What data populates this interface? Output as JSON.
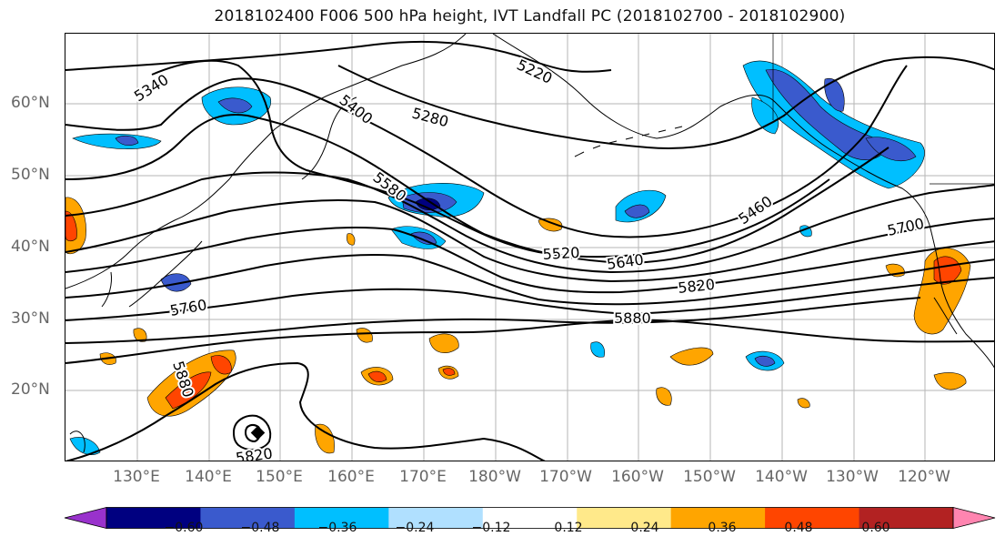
{
  "title": "2018102400 F006 500 hPa height, IVT Landfall PC (2018102700 - 2018102900)",
  "lat_labels": [
    "60°N",
    "50°N",
    "40°N",
    "30°N",
    "20°N"
  ],
  "lon_labels": [
    "130°E",
    "140°E",
    "150°E",
    "160°E",
    "170°E",
    "180°W",
    "170°W",
    "160°W",
    "150°W",
    "140°W",
    "130°W",
    "120°W"
  ],
  "contour_labels": {
    "c5340": "5340",
    "c5220": "5220",
    "c5400": "5400",
    "c5280": "5280",
    "c5580": "5580",
    "c5460": "5460",
    "c5700": "5700",
    "c5520": "5520",
    "c5640": "5640",
    "c5820a": "5820",
    "c5760": "5760",
    "c5880a": "5880",
    "c5880b": "5880",
    "c5820b": "5820"
  },
  "colorbar": {
    "ticks": [
      "−0.60",
      "−0.48",
      "−0.36",
      "−0.24",
      "−0.12",
      "0.12",
      "0.24",
      "0.36",
      "0.48",
      "0.60"
    ],
    "colors": [
      "#9932cc",
      "#000080",
      "#3a5acd",
      "#00bfff",
      "#b0e0ff",
      "#ffffff",
      "#ffe98a",
      "#ffa500",
      "#ff4500",
      "#b22222",
      "#ff85b0"
    ]
  }
}
